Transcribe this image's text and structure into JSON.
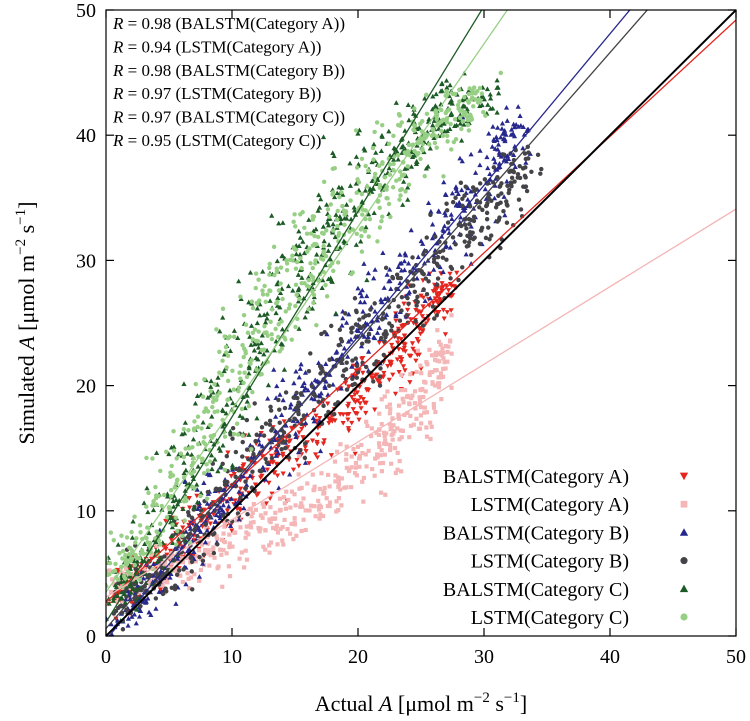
{
  "chart_data": {
    "type": "scatter",
    "title": "",
    "xlabel": "Actual A [μmol m⁻² s⁻¹]",
    "ylabel": "Simulated A [μmol m⁻² s⁻¹]",
    "xlabel_parts": {
      "pre": "Actual ",
      "var": "A",
      "unit": " [μmol m",
      "exp1": "−2",
      "mid": " s",
      "exp2": "−1",
      "end": "]"
    },
    "ylabel_parts": {
      "pre": "Simulated ",
      "var": "A",
      "unit": " [μmol m",
      "exp1": "−2",
      "mid": " s",
      "exp2": "−1",
      "end": "]"
    },
    "xlim": [
      0,
      50
    ],
    "ylim": [
      0,
      50
    ],
    "xticks": [
      0,
      10,
      20,
      30,
      40,
      50
    ],
    "yticks": [
      0,
      10,
      20,
      30,
      40,
      50
    ],
    "grid": false,
    "legend_position": "bottom-right",
    "identity_line": {
      "from": [
        0,
        0
      ],
      "to": [
        50,
        50
      ],
      "color": "#000000"
    },
    "annotations": [
      {
        "var": "R",
        "text": " = 0.98 (BALSTM(Category A))"
      },
      {
        "var": "R",
        "text": " = 0.94 (LSTM(Category A))"
      },
      {
        "var": "R",
        "text": " = 0.98 (BALSTM(Category B))"
      },
      {
        "var": "R",
        "text": " = 0.97 (LSTM(Category B))"
      },
      {
        "var": "R",
        "text": " = 0.97 (BALSTM(Category C))"
      },
      {
        "var": "R",
        "text": " = 0.95 (LSTM(Category C))"
      }
    ],
    "series": [
      {
        "name": "BALSTM(Category A)",
        "marker": "triangle-down",
        "color": "#e4261f",
        "fit": {
          "slope": 0.93,
          "intercept": 2.7
        },
        "cloud": [
          [
            0.5,
            3,
            1.0,
            1.8
          ],
          [
            4,
            6,
            1.2,
            1.5
          ],
          [
            8,
            9,
            1.5,
            1.5
          ],
          [
            12,
            12.5,
            1.5,
            1.5
          ],
          [
            16,
            16,
            1.5,
            1.5
          ],
          [
            20,
            19.5,
            1.5,
            1.5
          ],
          [
            23,
            22,
            1.2,
            1.5
          ],
          [
            25,
            25.5,
            1.0,
            2.0
          ],
          [
            27,
            28,
            0.6,
            1.2
          ]
        ]
      },
      {
        "name": "LSTM(Category A)",
        "marker": "square",
        "color": "#f4b6b6",
        "fit": {
          "slope": 0.62,
          "intercept": 3.1
        },
        "cloud": [
          [
            0.5,
            4,
            0.8,
            1.5
          ],
          [
            4,
            5,
            1.5,
            1.2
          ],
          [
            8,
            6.5,
            1.5,
            1.2
          ],
          [
            12,
            8.5,
            1.8,
            1.5
          ],
          [
            16,
            10.5,
            1.8,
            1.5
          ],
          [
            20,
            13.5,
            1.8,
            1.8
          ],
          [
            23,
            16.5,
            1.5,
            2.0
          ],
          [
            25,
            19.5,
            1.2,
            2.0
          ],
          [
            27,
            22.5,
            0.8,
            1.5
          ]
        ]
      },
      {
        "name": "BALSTM(Category B)",
        "marker": "triangle-up",
        "color": "#27288d",
        "fit": {
          "slope": 1.21,
          "intercept": -0.3
        },
        "cloud": [
          [
            1,
            1,
            0.8,
            0.8
          ],
          [
            4,
            4.5,
            1.5,
            1.2
          ],
          [
            8,
            9,
            1.5,
            1.5
          ],
          [
            12,
            14,
            1.5,
            2.0
          ],
          [
            16,
            19,
            1.5,
            2.0
          ],
          [
            20,
            24,
            1.5,
            2.0
          ],
          [
            24,
            29,
            1.5,
            2.0
          ],
          [
            28,
            34,
            1.5,
            2.0
          ],
          [
            31,
            38,
            1.5,
            2.0
          ],
          [
            33,
            41.5,
            0.8,
            1.0
          ]
        ]
      },
      {
        "name": "LSTM(Category B)",
        "marker": "circle",
        "color": "#444448",
        "fit": {
          "slope": 1.15,
          "intercept": 0.6
        },
        "cloud": [
          [
            1,
            1.5,
            0.8,
            0.8
          ],
          [
            4,
            5,
            1.5,
            1.5
          ],
          [
            8,
            9.5,
            1.5,
            2.0
          ],
          [
            12,
            14.5,
            1.5,
            2.0
          ],
          [
            16,
            19,
            1.5,
            2.5
          ],
          [
            20,
            23,
            1.5,
            2.5
          ],
          [
            24,
            27,
            1.5,
            2.5
          ],
          [
            28,
            32,
            1.5,
            2.0
          ],
          [
            31,
            35,
            1.2,
            2.0
          ],
          [
            34,
            38,
            0.8,
            1.0
          ]
        ]
      },
      {
        "name": "BALSTM(Category C)",
        "marker": "triangle-up",
        "color": "#1d5b26",
        "fit": {
          "slope": 1.64,
          "intercept": 1.1
        },
        "cloud": [
          [
            1,
            3,
            0.8,
            1.2
          ],
          [
            3,
            6.5,
            1.5,
            1.5
          ],
          [
            6,
            12,
            1.5,
            2.5
          ],
          [
            9,
            18,
            1.5,
            3.0
          ],
          [
            12,
            24,
            1.5,
            3.0
          ],
          [
            15,
            29,
            1.5,
            3.0
          ],
          [
            18,
            33,
            1.5,
            3.0
          ],
          [
            21,
            36,
            1.5,
            2.5
          ],
          [
            24,
            39,
            1.5,
            2.0
          ],
          [
            27,
            42,
            1.5,
            1.5
          ],
          [
            30,
            43,
            1.2,
            1.0
          ]
        ]
      },
      {
        "name": "LSTM(Category C)",
        "marker": "circle",
        "color": "#97cf85",
        "fit": {
          "slope": 1.46,
          "intercept": 3.5
        },
        "cloud": [
          [
            0.5,
            5,
            0.8,
            1.2
          ],
          [
            3,
            7.5,
            1.5,
            1.5
          ],
          [
            6,
            12.5,
            1.5,
            2.5
          ],
          [
            9,
            19,
            1.5,
            3.0
          ],
          [
            12,
            24,
            1.5,
            3.0
          ],
          [
            15,
            28.5,
            1.5,
            3.0
          ],
          [
            18,
            32,
            1.5,
            3.0
          ],
          [
            21,
            35.5,
            1.5,
            2.5
          ],
          [
            24,
            38.5,
            1.5,
            2.0
          ],
          [
            27,
            41.5,
            1.5,
            1.5
          ],
          [
            30,
            43.5,
            1.0,
            1.0
          ]
        ]
      }
    ]
  }
}
